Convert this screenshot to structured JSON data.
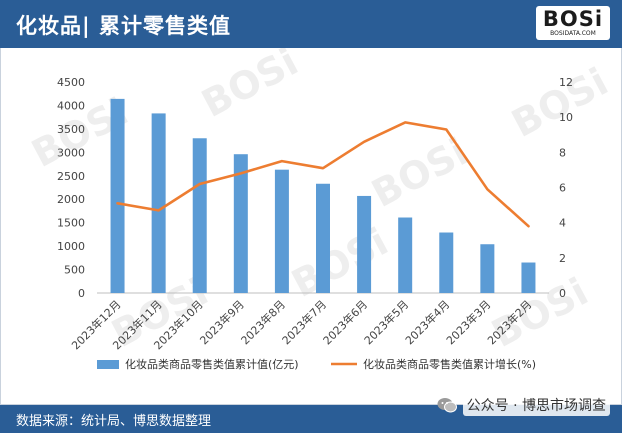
{
  "header": {
    "title": "化妆品| 累计零售类值"
  },
  "logo": {
    "main": "BOSi",
    "sub": "BOSIDATA.COM"
  },
  "footer": {
    "source": "数据来源：统计局、博思数据整理"
  },
  "wechat": {
    "account": "公众号 · 博思市场调查"
  },
  "colors": {
    "bar": "#5b9bd5",
    "line": "#ed7d31",
    "brand": "#2a5d96"
  },
  "chart_data": {
    "type": "bar",
    "categories": [
      "2023年12月",
      "2023年11月",
      "2023年10月",
      "2023年9月",
      "2023年8月",
      "2023年7月",
      "2023年6月",
      "2023年5月",
      "2023年4月",
      "2023年3月",
      "2023年2月"
    ],
    "series": [
      {
        "name": "化妆品类商品零售类值累计值(亿元)",
        "type": "bar",
        "axis": "left",
        "values": [
          4140,
          3830,
          3300,
          2960,
          2630,
          2330,
          2070,
          1610,
          1290,
          1040,
          650
        ]
      },
      {
        "name": "化妆品类商品零售类值累计增长(%)",
        "type": "line",
        "axis": "right",
        "values": [
          5.1,
          4.7,
          6.2,
          6.8,
          7.5,
          7.1,
          8.6,
          9.7,
          9.3,
          5.9,
          3.8
        ]
      }
    ],
    "y_left": {
      "min": 0,
      "max": 4500,
      "step": 500
    },
    "y_right": {
      "min": 0,
      "max": 12,
      "step": 2
    },
    "grid": false,
    "legend": "bottom"
  }
}
